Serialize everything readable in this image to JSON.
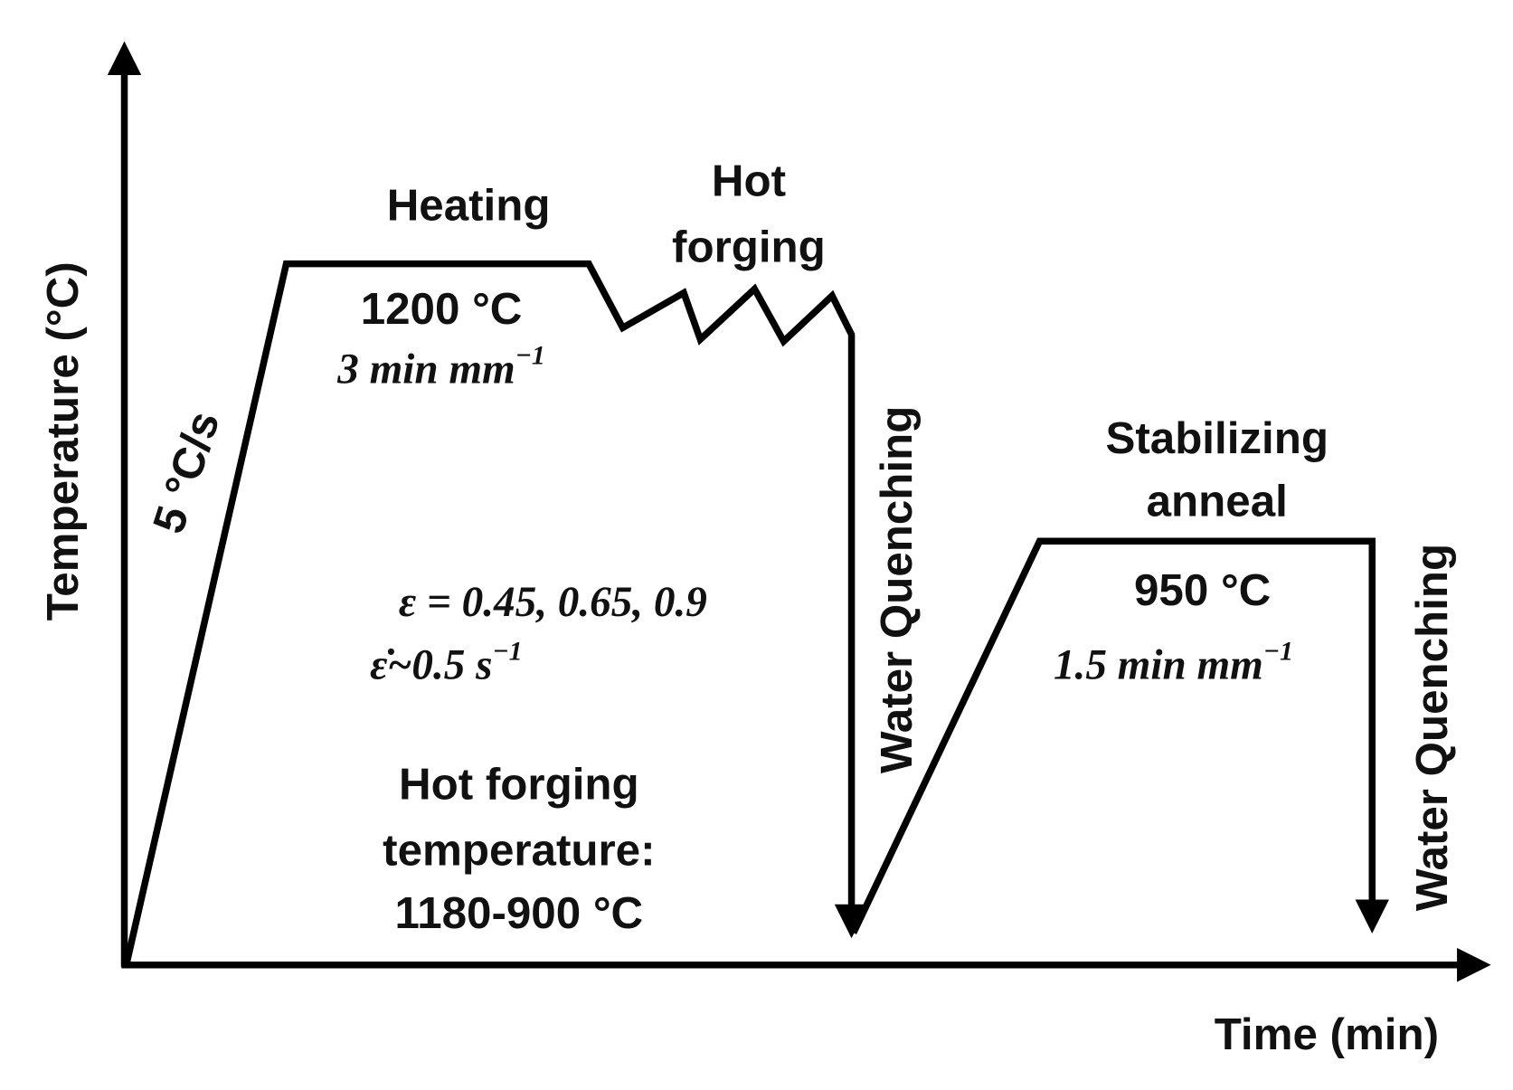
{
  "axes": {
    "y_label": "Temperature  (°C)",
    "x_label": "Time (min)"
  },
  "stages": {
    "heating": {
      "title": "Heating",
      "temperature": "1200 °C",
      "time": {
        "text": "3 min mm",
        "sup": "−1"
      }
    },
    "heating_rate": "5 °C/s",
    "hot_forging": {
      "title": [
        "Hot",
        "forging"
      ],
      "strain": "ε = 0.45, 0.65, 0.9",
      "strain_rate": {
        "text": "ε̇~0.5 s",
        "sup": "−1"
      },
      "temperature": [
        "Hot forging",
        "temperature:",
        "1180-900 °C"
      ]
    },
    "quench_1": "Water Quenching",
    "anneal": {
      "title": [
        "Stabilizing",
        "anneal"
      ],
      "temperature": "950 °C",
      "time": {
        "text": "1.5 min mm",
        "sup": "−1"
      }
    },
    "quench_2": "Water Quenching"
  }
}
